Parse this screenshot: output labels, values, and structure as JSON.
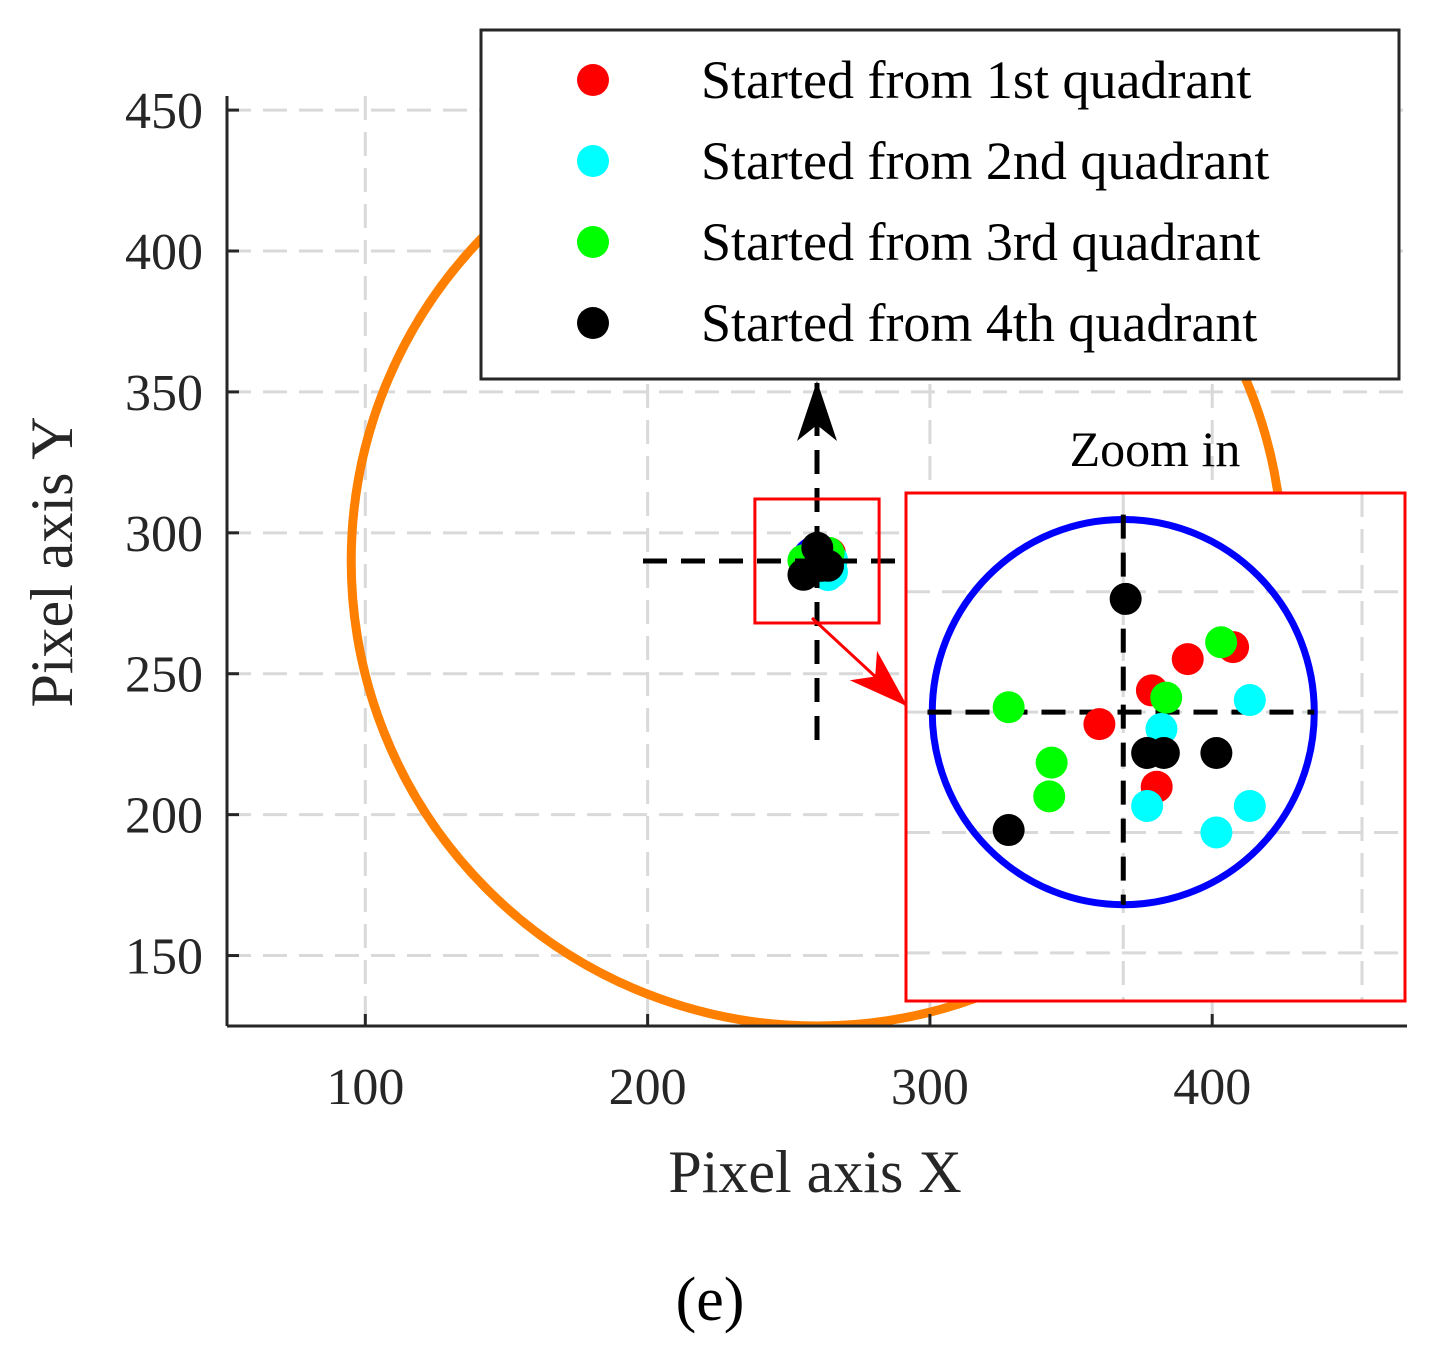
{
  "chart_data": {
    "type": "scatter",
    "panel_label": "(e)",
    "xlabel": "Pixel axis X",
    "ylabel": "Pixel axis Y",
    "xlim": [
      51,
      469
    ],
    "ylim": [
      125,
      455
    ],
    "xticks": [
      100,
      200,
      300,
      400
    ],
    "yticks": [
      150,
      200,
      250,
      300,
      350,
      400,
      450
    ],
    "grid": true,
    "reference_circle": {
      "color": "#ff8000",
      "center": [
        260,
        290
      ],
      "radius": 165
    },
    "target_circle": {
      "color": "#0000ff",
      "center": [
        260,
        290
      ],
      "radius": 8
    },
    "crosshair_center": [
      260,
      290
    ],
    "zoom_label": "Zoom in",
    "legend": {
      "location": "top-right",
      "entries": [
        {
          "label": "Started from 1st quadrant",
          "color": "#ff0000"
        },
        {
          "label": "Started from 2nd quadrant",
          "color": "#00ffff"
        },
        {
          "label": "Started from 3rd quadrant",
          "color": "#00ff00"
        },
        {
          "label": "Started from 4th quadrant",
          "color": "#000000"
        }
      ]
    },
    "series": [
      {
        "name": "Started from 1st quadrant",
        "color": "#ff0000",
        "points": [
          [
            259.0,
            289.5
          ],
          [
            261.2,
            290.9
          ],
          [
            262.7,
            292.2
          ],
          [
            264.6,
            292.7
          ],
          [
            261.4,
            286.9
          ]
        ]
      },
      {
        "name": "Started from 2nd quadrant",
        "color": "#00ffff",
        "points": [
          [
            261.6,
            289.3
          ],
          [
            261.0,
            286.1
          ],
          [
            265.3,
            290.5
          ],
          [
            265.3,
            286.1
          ],
          [
            263.9,
            285.0
          ]
        ]
      },
      {
        "name": "Started from 3rd quadrant",
        "color": "#00ff00",
        "points": [
          [
            255.2,
            290.2
          ],
          [
            257.0,
            287.9
          ],
          [
            256.9,
            286.5
          ],
          [
            261.8,
            290.6
          ],
          [
            264.1,
            292.9
          ]
        ]
      },
      {
        "name": "Started from 4th quadrant",
        "color": "#000000",
        "points": [
          [
            260.1,
            294.7
          ],
          [
            261.0,
            288.3
          ],
          [
            261.7,
            288.3
          ],
          [
            263.9,
            288.3
          ],
          [
            255.2,
            285.1
          ]
        ]
      }
    ]
  }
}
